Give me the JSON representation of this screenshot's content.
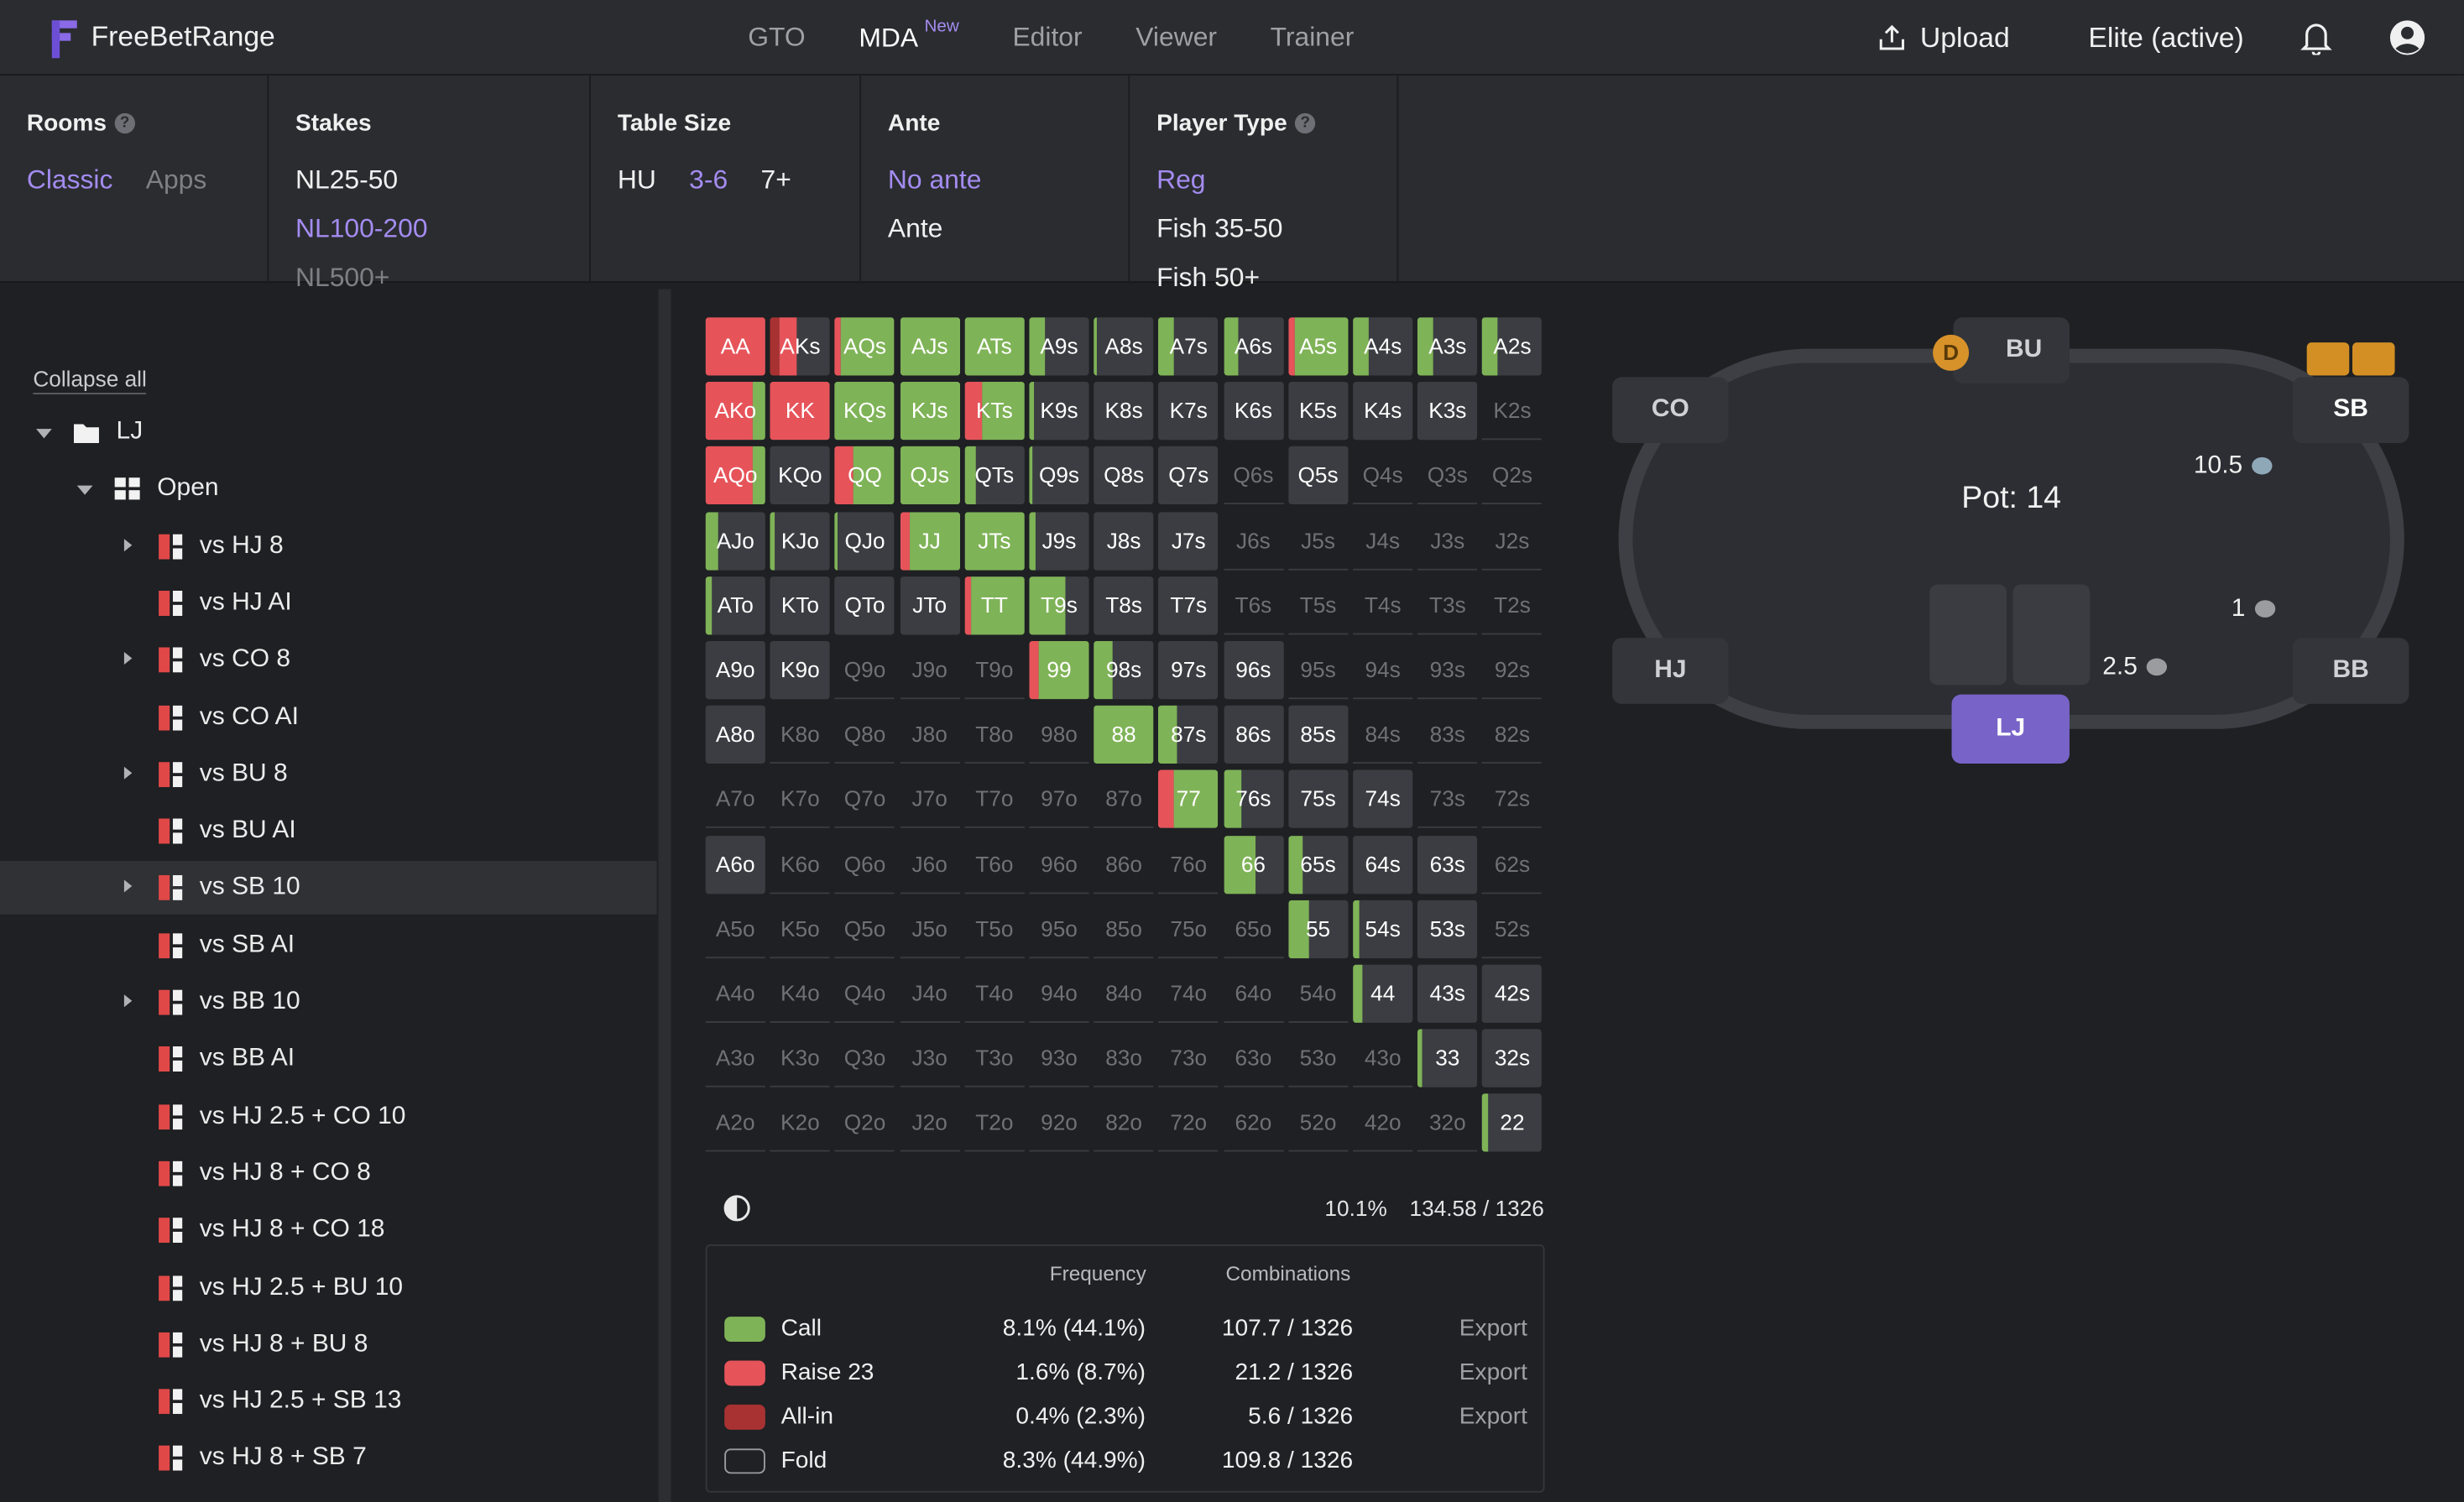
{
  "app": {
    "logo_text": "FreeBetRange",
    "nav": [
      {
        "label": "GTO",
        "active": false,
        "badge": ""
      },
      {
        "label": "MDA",
        "active": true,
        "badge": "New"
      },
      {
        "label": "Editor",
        "active": false,
        "badge": ""
      },
      {
        "label": "Viewer",
        "active": false,
        "badge": ""
      },
      {
        "label": "Trainer",
        "active": false,
        "badge": ""
      }
    ],
    "upload_label": "Upload",
    "plan_label": "Elite (active)"
  },
  "filters": {
    "rooms": {
      "title": "Rooms",
      "options": [
        {
          "label": "Classic",
          "state": "on"
        },
        {
          "label": "Apps",
          "state": "dim"
        }
      ]
    },
    "stakes": {
      "title": "Stakes",
      "options": [
        {
          "label": "NL25-50",
          "state": "off"
        },
        {
          "label": "NL100-200",
          "state": "on"
        },
        {
          "label": "NL500+",
          "state": "dim"
        }
      ]
    },
    "table_size": {
      "title": "Table Size",
      "options": [
        {
          "label": "HU",
          "state": "off"
        },
        {
          "label": "3-6",
          "state": "on"
        },
        {
          "label": "7+",
          "state": "off"
        }
      ]
    },
    "ante": {
      "title": "Ante",
      "options": [
        {
          "label": "No ante",
          "state": "on"
        },
        {
          "label": "Ante",
          "state": "off"
        }
      ]
    },
    "player_type": {
      "title": "Player Type",
      "options": [
        {
          "label": "Reg",
          "state": "on"
        },
        {
          "label": "Fish 35-50",
          "state": "off"
        },
        {
          "label": "Fish 50+",
          "state": "off"
        }
      ]
    }
  },
  "tree": {
    "collapse_all": "Collapse all",
    "nodes": [
      {
        "label": "LJ",
        "level": 0,
        "icon": "folder-icon",
        "caret": "down",
        "selected": false
      },
      {
        "label": "Open",
        "level": 1,
        "icon": "grid-icon",
        "caret": "down",
        "selected": false
      },
      {
        "label": "vs HJ 8",
        "level": 2,
        "icon": "range-icon",
        "caret": "right",
        "selected": false
      },
      {
        "label": "vs HJ AI",
        "level": 2,
        "icon": "range-icon",
        "caret": "",
        "selected": false
      },
      {
        "label": "vs CO 8",
        "level": 2,
        "icon": "range-icon",
        "caret": "right",
        "selected": false
      },
      {
        "label": "vs CO AI",
        "level": 2,
        "icon": "range-icon",
        "caret": "",
        "selected": false
      },
      {
        "label": "vs BU 8",
        "level": 2,
        "icon": "range-icon",
        "caret": "right",
        "selected": false
      },
      {
        "label": "vs BU AI",
        "level": 2,
        "icon": "range-icon",
        "caret": "",
        "selected": false
      },
      {
        "label": "vs SB 10",
        "level": 2,
        "icon": "range-icon",
        "caret": "right",
        "selected": true
      },
      {
        "label": "vs SB AI",
        "level": 2,
        "icon": "range-icon",
        "caret": "",
        "selected": false
      },
      {
        "label": "vs BB 10",
        "level": 2,
        "icon": "range-icon",
        "caret": "right",
        "selected": false
      },
      {
        "label": "vs BB AI",
        "level": 2,
        "icon": "range-icon",
        "caret": "",
        "selected": false
      },
      {
        "label": "vs HJ 2.5 + CO 10",
        "level": 2,
        "icon": "range-icon",
        "caret": "",
        "selected": false
      },
      {
        "label": "vs HJ 8 + CO 8",
        "level": 2,
        "icon": "range-icon",
        "caret": "",
        "selected": false
      },
      {
        "label": "vs HJ 8 + CO 18",
        "level": 2,
        "icon": "range-icon",
        "caret": "",
        "selected": false
      },
      {
        "label": "vs HJ 2.5 + BU 10",
        "level": 2,
        "icon": "range-icon",
        "caret": "",
        "selected": false
      },
      {
        "label": "vs HJ 8 + BU 8",
        "level": 2,
        "icon": "range-icon",
        "caret": "",
        "selected": false
      },
      {
        "label": "vs HJ 2.5 + SB 13",
        "level": 2,
        "icon": "range-icon",
        "caret": "",
        "selected": false
      },
      {
        "label": "vs HJ 8 + SB 7",
        "level": 2,
        "icon": "range-icon",
        "caret": "",
        "selected": false
      }
    ]
  },
  "matrix": {
    "colors": {
      "call": "#7fb357",
      "raise": "#e6545a",
      "allin": "#a83232",
      "fold": "#3b3d42"
    },
    "rows": [
      [
        "AA",
        "AKs",
        "AQs",
        "AJs",
        "ATs",
        "A9s",
        "A8s",
        "A7s",
        "A6s",
        "A5s",
        "A4s",
        "A3s",
        "A2s"
      ],
      [
        "AKo",
        "KK",
        "KQs",
        "KJs",
        "KTs",
        "K9s",
        "K8s",
        "K7s",
        "K6s",
        "K5s",
        "K4s",
        "K3s",
        "K2s"
      ],
      [
        "AQo",
        "KQo",
        "QQ",
        "QJs",
        "QTs",
        "Q9s",
        "Q8s",
        "Q7s",
        "Q6s",
        "Q5s",
        "Q4s",
        "Q3s",
        "Q2s"
      ],
      [
        "AJo",
        "KJo",
        "QJo",
        "JJ",
        "JTs",
        "J9s",
        "J8s",
        "J7s",
        "J6s",
        "J5s",
        "J4s",
        "J3s",
        "J2s"
      ],
      [
        "ATo",
        "KTo",
        "QTo",
        "JTo",
        "TT",
        "T9s",
        "T8s",
        "T7s",
        "T6s",
        "T5s",
        "T4s",
        "T3s",
        "T2s"
      ],
      [
        "A9o",
        "K9o",
        "Q9o",
        "J9o",
        "T9o",
        "99",
        "98s",
        "97s",
        "96s",
        "95s",
        "94s",
        "93s",
        "92s"
      ],
      [
        "A8o",
        "K8o",
        "Q8o",
        "J8o",
        "T8o",
        "98o",
        "88",
        "87s",
        "86s",
        "85s",
        "84s",
        "83s",
        "82s"
      ],
      [
        "A7o",
        "K7o",
        "Q7o",
        "J7o",
        "T7o",
        "97o",
        "87o",
        "77",
        "76s",
        "75s",
        "74s",
        "73s",
        "72s"
      ],
      [
        "A6o",
        "K6o",
        "Q6o",
        "J6o",
        "T6o",
        "96o",
        "86o",
        "76o",
        "66",
        "65s",
        "64s",
        "63s",
        "62s"
      ],
      [
        "A5o",
        "K5o",
        "Q5o",
        "J5o",
        "T5o",
        "95o",
        "85o",
        "75o",
        "65o",
        "55",
        "54s",
        "53s",
        "52s"
      ],
      [
        "A4o",
        "K4o",
        "Q4o",
        "J4o",
        "T4o",
        "94o",
        "84o",
        "74o",
        "64o",
        "54o",
        "44",
        "43s",
        "42s"
      ],
      [
        "A3o",
        "K3o",
        "Q3o",
        "J3o",
        "T3o",
        "93o",
        "83o",
        "73o",
        "63o",
        "53o",
        "43o",
        "33",
        "32s"
      ],
      [
        "A2o",
        "K2o",
        "Q2o",
        "J2o",
        "T2o",
        "92o",
        "82o",
        "72o",
        "62o",
        "52o",
        "42o",
        "32o",
        "22"
      ]
    ],
    "strategy": {
      "AA": [
        0,
        1,
        0
      ],
      "AKs": [
        0,
        0.3,
        0.15
      ],
      "AQs": [
        0.9,
        0.1,
        0
      ],
      "AJs": [
        1,
        0,
        0
      ],
      "ATs": [
        1,
        0,
        0
      ],
      "A9s": [
        0.25,
        0,
        0
      ],
      "A8s": [
        0.05,
        0,
        0
      ],
      "A7s": [
        0.25,
        0,
        0
      ],
      "A6s": [
        0.25,
        0,
        0
      ],
      "A5s": [
        0.9,
        0.1,
        0
      ],
      "A4s": [
        0.25,
        0,
        0
      ],
      "A3s": [
        0.25,
        0,
        0
      ],
      "A2s": [
        0.25,
        0,
        0
      ],
      "AKo": [
        0.2,
        0.8,
        0
      ],
      "KK": [
        0,
        1,
        0
      ],
      "KQs": [
        1,
        0,
        0
      ],
      "KJs": [
        1,
        0,
        0
      ],
      "KTs": [
        0.7,
        0.3,
        0
      ],
      "K9s": [
        0.08,
        0,
        0
      ],
      "K8s": [
        0,
        0,
        0
      ],
      "K7s": [
        0,
        0,
        0
      ],
      "K6s": [
        0,
        0,
        0
      ],
      "K5s": [
        0,
        0,
        0
      ],
      "K4s": [
        0,
        0,
        0
      ],
      "K3s": [
        0,
        0,
        0
      ],
      "AQo": [
        0.2,
        0.8,
        0
      ],
      "KQo": [
        0,
        0,
        0
      ],
      "QQ": [
        0.7,
        0.3,
        0
      ],
      "QJs": [
        1,
        0,
        0
      ],
      "QTs": [
        0.2,
        0,
        0
      ],
      "Q9s": [
        0.05,
        0,
        0
      ],
      "Q8s": [
        0,
        0,
        0
      ],
      "Q7s": [
        0,
        0,
        0
      ],
      "Q5s": [
        0,
        0,
        0
      ],
      "AJo": [
        0.2,
        0,
        0
      ],
      "KJo": [
        0.08,
        0,
        0
      ],
      "QJo": [
        0.03,
        0,
        0
      ],
      "JJ": [
        0.82,
        0.18,
        0
      ],
      "JTs": [
        1,
        0,
        0
      ],
      "J9s": [
        0.1,
        0,
        0
      ],
      "J8s": [
        0,
        0,
        0
      ],
      "J7s": [
        0,
        0,
        0
      ],
      "ATo": [
        0.1,
        0,
        0
      ],
      "KTo": [
        0,
        0,
        0
      ],
      "QTo": [
        0,
        0,
        0
      ],
      "JTo": [
        0,
        0,
        0
      ],
      "TT": [
        0.9,
        0.1,
        0
      ],
      "T9s": [
        0.6,
        0,
        0
      ],
      "T8s": [
        0,
        0,
        0
      ],
      "T7s": [
        0,
        0,
        0
      ],
      "A9o": [
        0,
        0,
        0
      ],
      "K9o": [
        0,
        0,
        0
      ],
      "99": [
        0.85,
        0.15,
        0
      ],
      "98s": [
        0.3,
        0,
        0
      ],
      "97s": [
        0,
        0,
        0
      ],
      "96s": [
        0,
        0,
        0
      ],
      "A8o": [
        0,
        0,
        0
      ],
      "88": [
        1,
        0,
        0
      ],
      "87s": [
        0.3,
        0,
        0
      ],
      "86s": [
        0,
        0,
        0
      ],
      "85s": [
        0,
        0,
        0
      ],
      "77": [
        0.75,
        0.25,
        0
      ],
      "76s": [
        0.3,
        0,
        0
      ],
      "75s": [
        0,
        0,
        0
      ],
      "74s": [
        0,
        0,
        0
      ],
      "A6o": [
        0,
        0,
        0
      ],
      "66": [
        0.55,
        0,
        0
      ],
      "65s": [
        0.25,
        0,
        0
      ],
      "64s": [
        0,
        0,
        0
      ],
      "63s": [
        0,
        0,
        0
      ],
      "55": [
        0.35,
        0,
        0
      ],
      "54s": [
        0.1,
        0,
        0
      ],
      "53s": [
        0,
        0,
        0
      ],
      "44": [
        0.15,
        0,
        0
      ],
      "43s": [
        0,
        0,
        0
      ],
      "42s": [
        0,
        0,
        0
      ],
      "33": [
        0.08,
        0,
        0
      ],
      "32s": [
        0,
        0,
        0
      ],
      "22": [
        0.1,
        0,
        0
      ]
    }
  },
  "summary": {
    "percent": "10.1%",
    "combos": "134.58 / 1326"
  },
  "legend": {
    "headers": {
      "frequency": "Frequency",
      "combinations": "Combinations"
    },
    "rows": [
      {
        "label": "Call",
        "color": "#7fb357",
        "frequency": "8.1% (44.1%)",
        "combinations": "107.7 / 1326",
        "export": "Export"
      },
      {
        "label": "Raise 23",
        "color": "#e6545a",
        "frequency": "1.6% (8.7%)",
        "combinations": "21.2 / 1326",
        "export": "Export"
      },
      {
        "label": "All-in",
        "color": "#a83232",
        "frequency": "0.4% (2.3%)",
        "combinations": "5.6 / 1326",
        "export": "Export"
      },
      {
        "label": "Fold",
        "color": "",
        "frequency": "8.3% (44.9%)",
        "combinations": "109.8 / 1326",
        "export": ""
      }
    ]
  },
  "table": {
    "dealer_label": "D",
    "pot_label": "Pot: 14",
    "seats": {
      "bu": "BU",
      "co": "CO",
      "sb": "SB",
      "hj": "HJ",
      "bb": "BB",
      "lj": "LJ"
    },
    "bets": {
      "sb": "10.5",
      "bb": "1",
      "lj": "2.5"
    }
  }
}
